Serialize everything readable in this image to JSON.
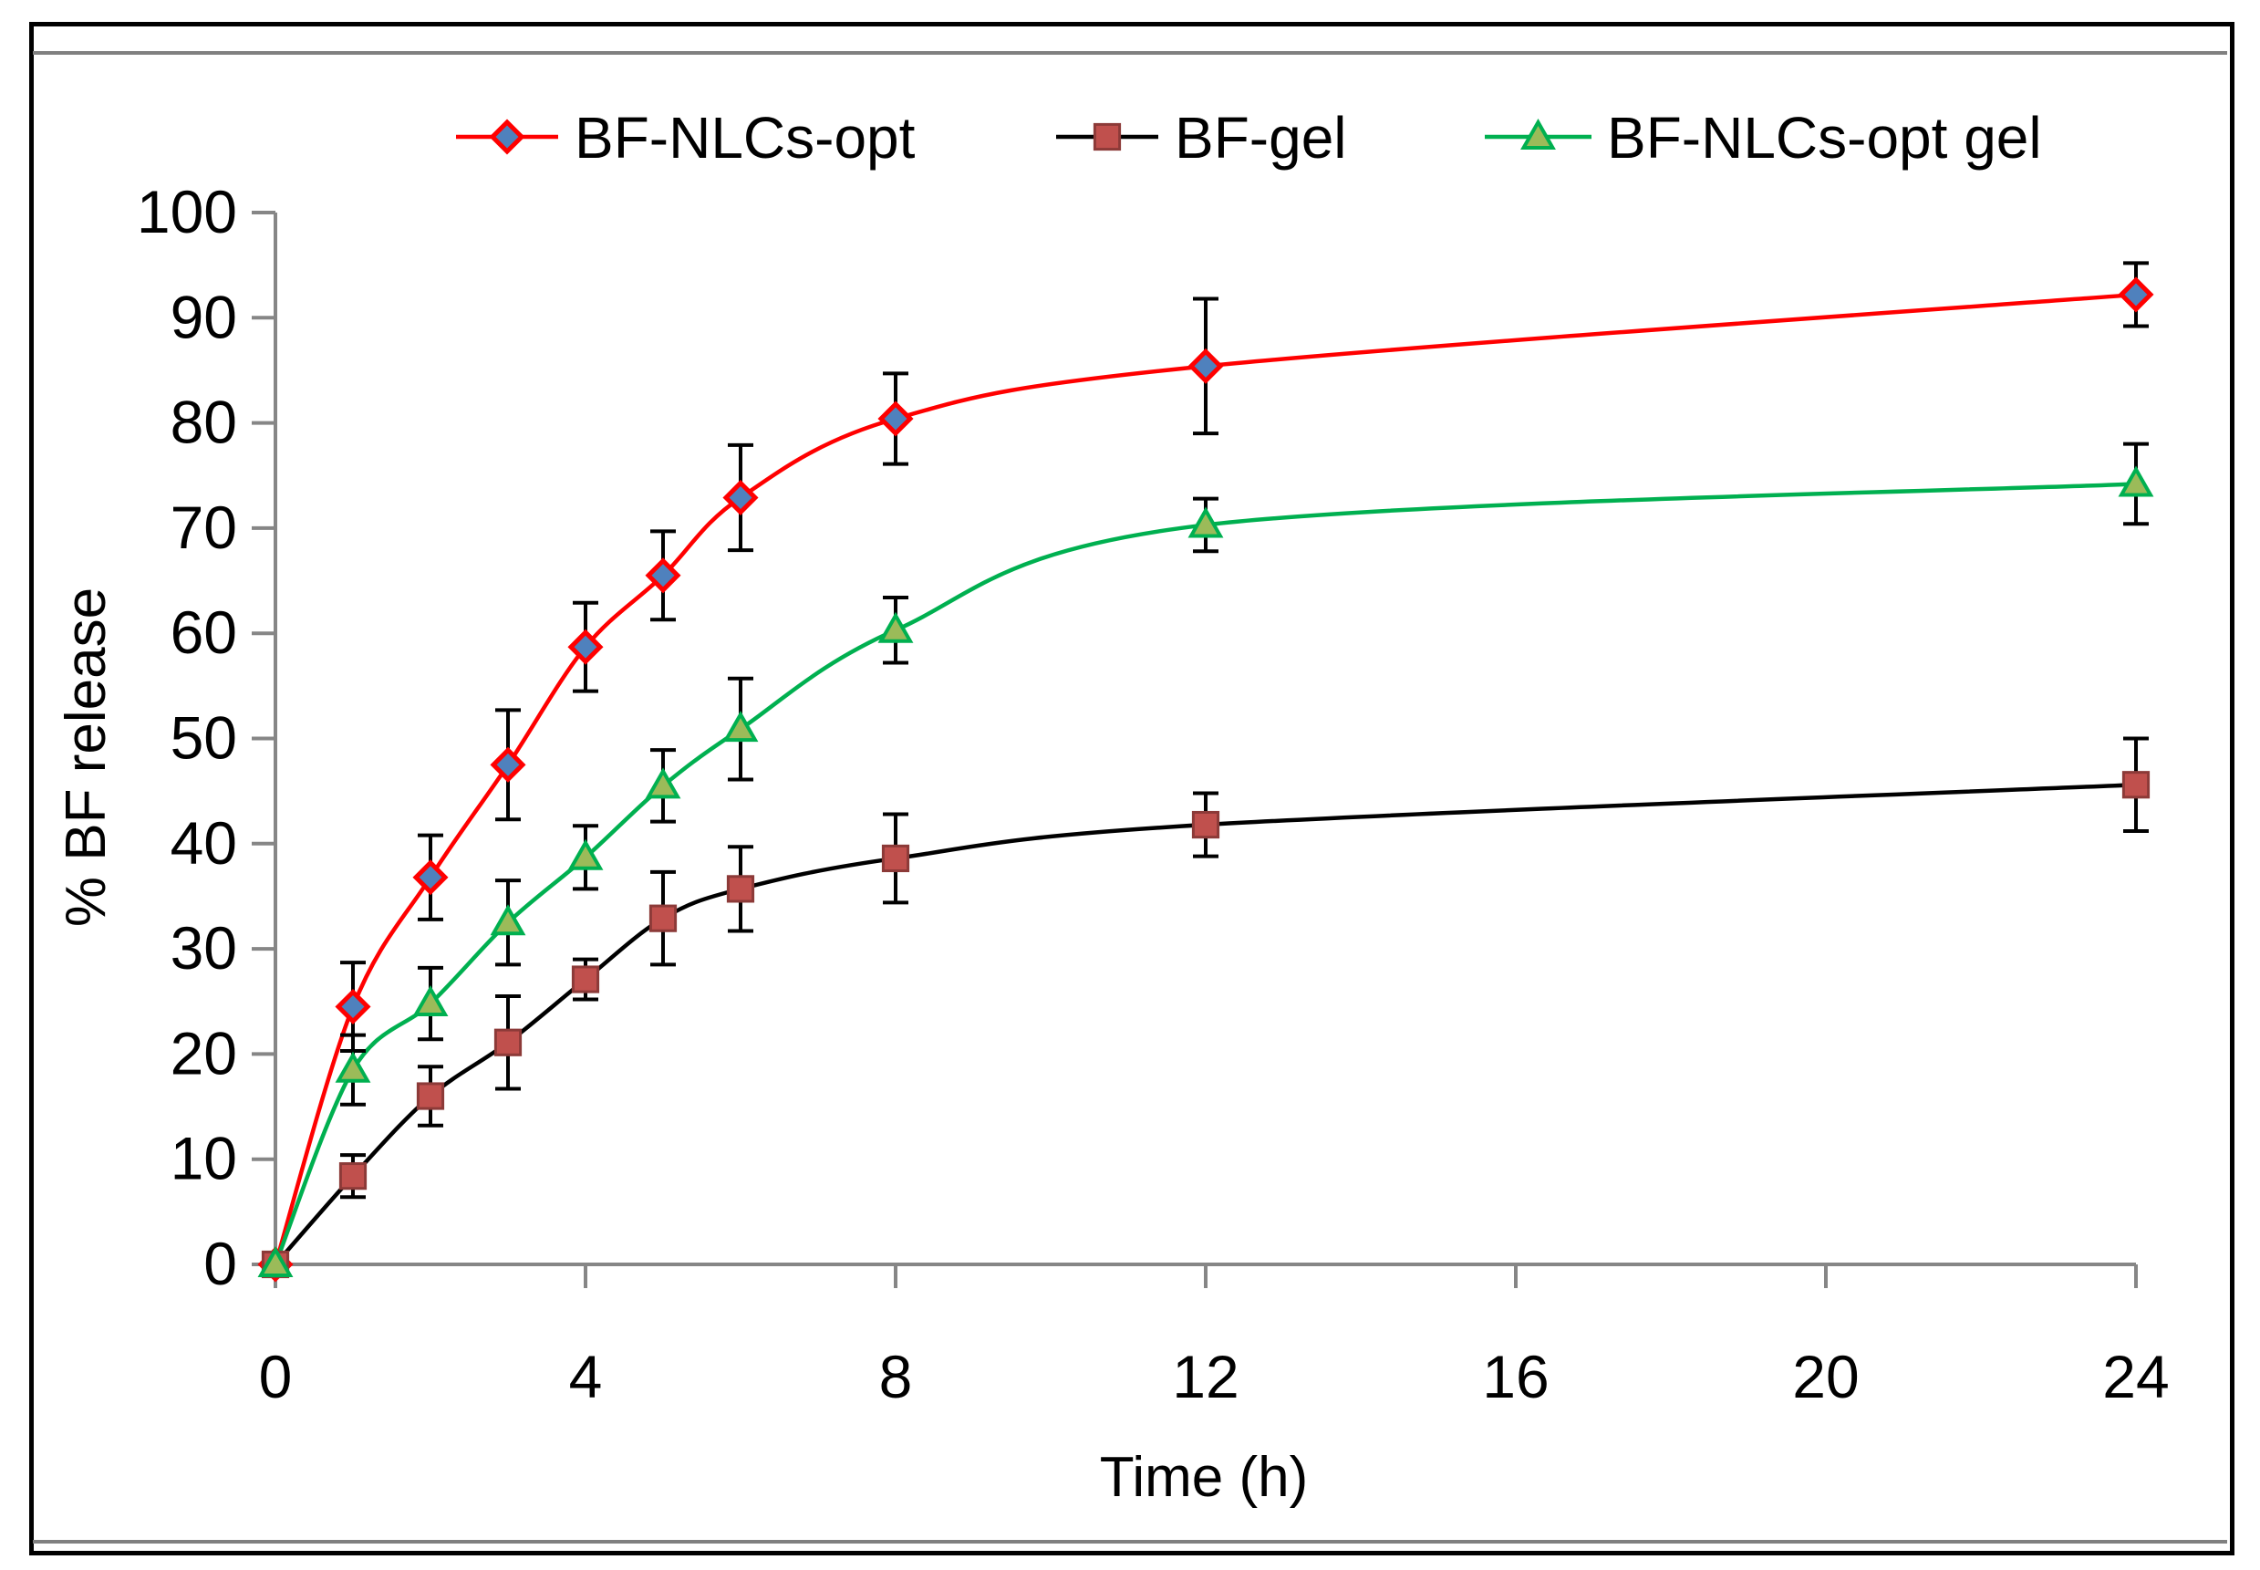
{
  "chart_data": {
    "type": "line",
    "title": "",
    "xlabel": "Time (h)",
    "ylabel": "% BF release",
    "xlim": [
      0,
      24
    ],
    "ylim": [
      0,
      100
    ],
    "xticks": [
      0,
      4,
      8,
      12,
      16,
      20,
      24
    ],
    "yticks": [
      0,
      10,
      20,
      30,
      40,
      50,
      60,
      70,
      80,
      90,
      100
    ],
    "x": [
      0,
      1,
      2,
      3,
      4,
      5,
      6,
      8,
      12,
      24
    ],
    "legend_position": "top",
    "series": [
      {
        "name": "BF-NLCs-opt",
        "color": "#ff0000",
        "marker": "diamond",
        "marker_fill": "#4f81bd",
        "values": [
          0,
          24.5,
          36.8,
          47.5,
          58.7,
          65.5,
          72.9,
          80.4,
          85.4,
          92.2
        ],
        "errors": [
          0,
          4.2,
          4.0,
          5.2,
          4.2,
          4.2,
          5.0,
          4.3,
          6.4,
          3.0
        ]
      },
      {
        "name": "BF-gel",
        "color": "#000000",
        "marker": "square",
        "marker_fill": "#c0504d",
        "values": [
          0,
          8.4,
          16.0,
          21.1,
          27.1,
          32.9,
          35.7,
          38.6,
          41.8,
          45.6
        ],
        "errors": [
          0,
          2.0,
          2.8,
          4.4,
          1.9,
          4.4,
          4.0,
          4.2,
          3.0,
          4.4
        ]
      },
      {
        "name": "BF-NLCs-opt gel",
        "color": "#00b050",
        "marker": "triangle",
        "marker_fill": "#9bbb59",
        "values": [
          0,
          18.5,
          24.8,
          32.5,
          38.7,
          45.5,
          50.9,
          60.3,
          70.3,
          74.2
        ],
        "errors": [
          0,
          3.3,
          3.4,
          4.0,
          3.0,
          3.4,
          4.8,
          3.1,
          2.5,
          3.8
        ]
      }
    ]
  }
}
